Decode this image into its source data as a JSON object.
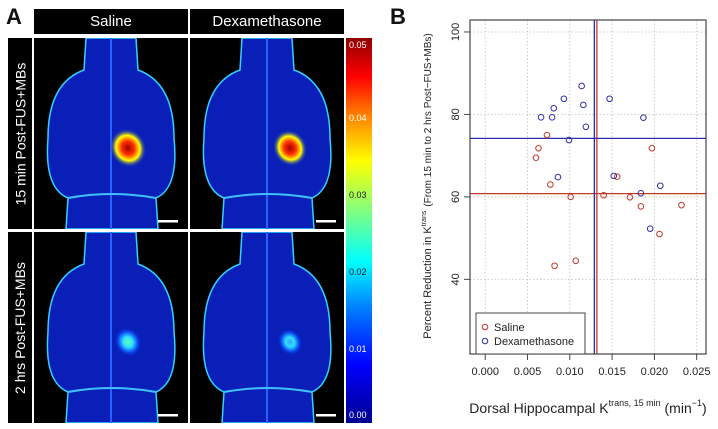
{
  "panel_a": {
    "letter": "A",
    "columns": [
      "Saline",
      "Dexamethasone"
    ],
    "rows": [
      "15 min Post-FUS+MBs",
      "2 hrs Post-FUS+MBs"
    ],
    "colorbar": {
      "ticks": [
        "0.05",
        "0.04",
        "0.03",
        "0.02",
        "0.01",
        "0.00"
      ],
      "colormap": "jet"
    }
  },
  "panel_b": {
    "letter": "B"
  },
  "chart_data": {
    "type": "scatter",
    "xlabel": "Dorsal Hippocampal K",
    "xlabel_sup": "trans, 15 min",
    "xlabel_unit": "(min",
    "xlabel_unit_sup": "−1",
    "xlabel_unit_end": ")",
    "ylabel": "Percent Reduction in K",
    "ylabel_sup": "trans",
    "ylabel_paren": "(From 15 min to 2 hrs Post−FUS+MBs)",
    "xlim": [
      -0.0018,
      0.0261
    ],
    "ylim": [
      21.9,
      102.9
    ],
    "x_ticks": [
      "0.000",
      "0.005",
      "0.010",
      "0.015",
      "0.020",
      "0.025"
    ],
    "y_ticks": [
      "40",
      "60",
      "80",
      "100"
    ],
    "grid": true,
    "legend_position": "bottom-left",
    "series": [
      {
        "name": "Saline",
        "color": "#c0392b",
        "mean_x": 0.0132,
        "mean_y": 60.8,
        "points": [
          [
            0.0073,
            75.0
          ],
          [
            0.0063,
            71.8
          ],
          [
            0.006,
            69.5
          ],
          [
            0.0197,
            71.8
          ],
          [
            0.0156,
            64.9
          ],
          [
            0.0077,
            63.0
          ],
          [
            0.0101,
            60.0
          ],
          [
            0.014,
            60.4
          ],
          [
            0.0171,
            59.9
          ],
          [
            0.0184,
            57.7
          ],
          [
            0.0232,
            58.0
          ],
          [
            0.0206,
            51.0
          ],
          [
            0.0082,
            43.3
          ],
          [
            0.0107,
            44.5
          ]
        ]
      },
      {
        "name": "Dexamethasone",
        "color": "#2e2ea8",
        "mean_x": 0.0129,
        "mean_y": 74.2,
        "points": [
          [
            0.0114,
            86.9
          ],
          [
            0.0093,
            83.8
          ],
          [
            0.0147,
            83.8
          ],
          [
            0.0081,
            81.5
          ],
          [
            0.0116,
            82.3
          ],
          [
            0.0066,
            79.3
          ],
          [
            0.0079,
            79.3
          ],
          [
            0.0187,
            79.2
          ],
          [
            0.0119,
            77.0
          ],
          [
            0.0099,
            73.8
          ],
          [
            0.0086,
            64.8
          ],
          [
            0.0152,
            65.1
          ],
          [
            0.0207,
            62.7
          ],
          [
            0.0184,
            60.9
          ],
          [
            0.0195,
            52.3
          ]
        ]
      }
    ]
  }
}
